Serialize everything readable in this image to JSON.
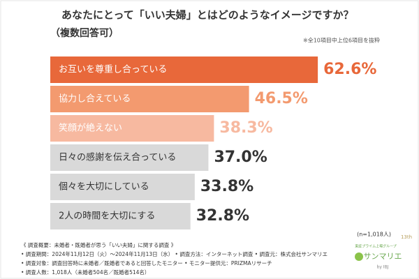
{
  "chart_data": {
    "type": "bar",
    "orientation": "horizontal",
    "title": "あなたにとって「いい夫婦」とはどのようなイメージですか？",
    "subtitle": "（複数回答可）",
    "note": "※全10項目中上位6項目を抜粋",
    "categories": [
      "お互いを尊重し合っている",
      "協力し合えている",
      "笑顔が絶えない",
      "日々の感謝を伝え合っている",
      "個々を大切にしている",
      "2人の時間を大切にする"
    ],
    "values": [
      62.6,
      46.5,
      38.3,
      37.0,
      33.8,
      32.8
    ],
    "value_labels": [
      "62.6%",
      "46.5%",
      "38.3%",
      "37.0%",
      "33.8%",
      "32.8%"
    ],
    "colors": [
      "#e8683a",
      "#f39a6f",
      "#f7b9a0",
      "#d9d9d9",
      "#d9d9d9",
      "#d9d9d9"
    ],
    "label_colors": [
      "#e8683a",
      "#f39a6f",
      "#f7b9a0",
      "#333333",
      "#333333",
      "#333333"
    ],
    "sample": "(n=1,018人)",
    "footer": [
      "《 調査概要：未婚者・既婚者が思う「いい夫婦」に関する調査 》",
      "• 調査期間：2024年11月12日（火）～2024年11月13日（水） • 調査方法：インターネット調査 • 調査元：株式会社サンマリエ",
      "• 調査対象：調査回答時に未婚者／既婚者であると回答したモニター • モニター提供元：PRIZMAリサーチ",
      "• 調査人数：1,018人（未婚者504名／既婚者514名）"
    ],
    "logo": {
      "tagline": "東証プライム上場グループ",
      "name": "サンマリエ",
      "by": "by IBJ",
      "badge": "13th"
    }
  }
}
